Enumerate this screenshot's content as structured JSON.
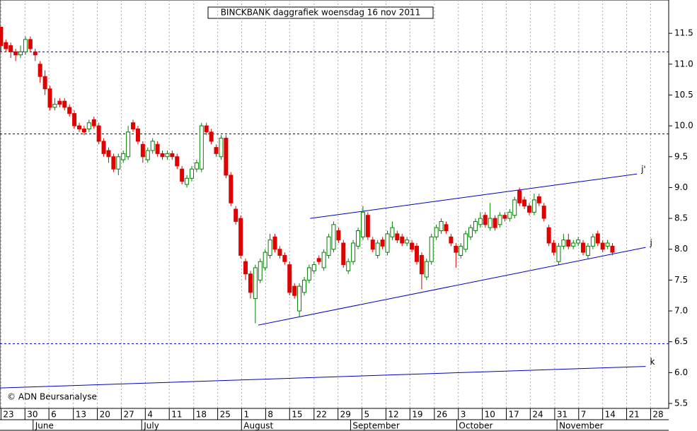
{
  "chart_data": {
    "type": "candlestick",
    "title": "BINCKBANK daggrafiek woensdag 16 nov 2011",
    "footer": "© ADN Beursanalyse",
    "up_color": "#008000",
    "down_color": "#e00000",
    "grid": true,
    "xlim": [
      -0.2,
      136.5
    ],
    "ylim": [
      5.42,
      12.04
    ],
    "yticks": [
      5.5,
      {
        "value": 6,
        "label": "6.0"
      },
      6.5,
      {
        "value": 7,
        "label": "7.0"
      },
      7.5,
      {
        "value": 8,
        "label": "8.0"
      },
      8.5,
      {
        "value": 9,
        "label": "9.0"
      },
      9.5,
      {
        "value": 10,
        "label": "10.0"
      },
      10.5,
      {
        "value": 11,
        "label": "11.0"
      },
      11.5
    ],
    "xticks": [
      {
        "value": 0,
        "label": "23"
      },
      {
        "value": 4.9,
        "label": "30"
      },
      {
        "value": 9.8,
        "label": "6"
      },
      {
        "value": 14.8,
        "label": "13"
      },
      {
        "value": 19.7,
        "label": "20"
      },
      {
        "value": 24.6,
        "label": "27"
      },
      {
        "value": 29.5,
        "label": "4"
      },
      {
        "value": 34.4,
        "label": "11"
      },
      {
        "value": 39.4,
        "label": "18"
      },
      {
        "value": 44.3,
        "label": "25"
      },
      {
        "value": 49.2,
        "label": "1"
      },
      {
        "value": 54.1,
        "label": "8"
      },
      {
        "value": 59,
        "label": "15"
      },
      {
        "value": 64,
        "label": "22"
      },
      {
        "value": 68.9,
        "label": "29"
      },
      {
        "value": 73.8,
        "label": "5"
      },
      {
        "value": 78.7,
        "label": "12"
      },
      {
        "value": 83.6,
        "label": "19"
      },
      {
        "value": 88.6,
        "label": "26"
      },
      {
        "value": 93.5,
        "label": "3"
      },
      {
        "value": 98.4,
        "label": "10"
      },
      {
        "value": 103.3,
        "label": "17"
      },
      {
        "value": 108.2,
        "label": "24"
      },
      {
        "value": 113.2,
        "label": "31"
      },
      {
        "value": 118.1,
        "label": "7"
      },
      {
        "value": 123,
        "label": "14"
      },
      {
        "value": 127.9,
        "label": "21"
      },
      {
        "value": 132.8,
        "label": "28"
      }
    ],
    "months": [
      {
        "value": 7,
        "label": "June"
      },
      {
        "value": 29.2,
        "label": "July"
      },
      {
        "value": 49.6,
        "label": "August"
      },
      {
        "value": 71.9,
        "label": "September"
      },
      {
        "value": 93.6,
        "label": "October"
      },
      {
        "value": 114.1,
        "label": "November"
      }
    ],
    "hlines": [
      11.2,
      9.87,
      6.47
    ],
    "trendlines": [
      {
        "label": "j'",
        "x": [
          63.2,
          130
        ],
        "y": [
          8.5,
          9.22
        ]
      },
      {
        "label": "j",
        "x": [
          52.6,
          131.8
        ],
        "y": [
          6.77,
          8.03
        ]
      },
      {
        "label": "k",
        "x": [
          -0.2,
          131.8
        ],
        "y": [
          5.75,
          6.1
        ]
      }
    ],
    "ohlc": [
      [
        11.6,
        11.6,
        11.2,
        11.3
      ],
      [
        11.35,
        11.4,
        11.2,
        11.25
      ],
      [
        11.3,
        11.35,
        11.1,
        11.2
      ],
      [
        11.2,
        11.25,
        11.05,
        11.15
      ],
      [
        11.15,
        11.3,
        11.1,
        11.2
      ],
      [
        11.2,
        11.45,
        11.15,
        11.4
      ],
      [
        11.4,
        11.45,
        11.2,
        11.25
      ],
      [
        11.2,
        11.25,
        11.05,
        11.15
      ],
      [
        11.0,
        11.05,
        10.7,
        10.8
      ],
      [
        10.8,
        10.9,
        10.5,
        10.6
      ],
      [
        10.6,
        10.65,
        10.25,
        10.3
      ],
      [
        10.3,
        10.45,
        10.25,
        10.35
      ],
      [
        10.4,
        10.45,
        10.3,
        10.35
      ],
      [
        10.4,
        10.45,
        10.25,
        10.3
      ],
      [
        10.3,
        10.35,
        10.15,
        10.2
      ],
      [
        10.2,
        10.25,
        9.95,
        10.0
      ],
      [
        10.0,
        10.05,
        9.9,
        9.95
      ],
      [
        9.95,
        10.0,
        9.85,
        9.9
      ],
      [
        9.95,
        10.1,
        9.9,
        10.05
      ],
      [
        10.1,
        10.15,
        9.95,
        10.0
      ],
      [
        10.0,
        10.05,
        9.7,
        9.75
      ],
      [
        9.75,
        9.8,
        9.5,
        9.55
      ],
      [
        9.6,
        9.65,
        9.4,
        9.5
      ],
      [
        9.5,
        9.55,
        9.25,
        9.3
      ],
      [
        9.3,
        9.55,
        9.2,
        9.5
      ],
      [
        9.45,
        9.6,
        9.4,
        9.55
      ],
      [
        9.5,
        10.0,
        9.45,
        9.9
      ],
      [
        10.05,
        10.1,
        9.9,
        9.95
      ],
      [
        9.95,
        10.0,
        9.7,
        9.75
      ],
      [
        9.7,
        9.75,
        9.4,
        9.5
      ],
      [
        9.45,
        9.65,
        9.4,
        9.6
      ],
      [
        9.6,
        9.8,
        9.55,
        9.75
      ],
      [
        9.7,
        9.75,
        9.5,
        9.55
      ],
      [
        9.55,
        9.6,
        9.45,
        9.5
      ],
      [
        9.5,
        9.6,
        9.45,
        9.55
      ],
      [
        9.55,
        9.6,
        9.45,
        9.5
      ],
      [
        9.5,
        9.55,
        9.3,
        9.35
      ],
      [
        9.3,
        9.35,
        9.05,
        9.1
      ],
      [
        9.05,
        9.2,
        9.0,
        9.15
      ],
      [
        9.15,
        9.35,
        9.1,
        9.3
      ],
      [
        9.3,
        9.45,
        9.25,
        9.4
      ],
      [
        9.3,
        10.05,
        9.25,
        10.0
      ],
      [
        10.0,
        10.05,
        9.85,
        9.9
      ],
      [
        9.9,
        9.95,
        9.7,
        9.75
      ],
      [
        9.65,
        9.7,
        9.5,
        9.55
      ],
      [
        9.5,
        9.85,
        9.45,
        9.8
      ],
      [
        9.8,
        9.85,
        9.15,
        9.2
      ],
      [
        9.2,
        9.25,
        8.7,
        8.75
      ],
      [
        8.65,
        8.7,
        8.4,
        8.45
      ],
      [
        8.5,
        8.55,
        7.85,
        7.9
      ],
      [
        7.8,
        7.85,
        7.5,
        7.6
      ],
      [
        7.6,
        7.65,
        7.2,
        7.3
      ],
      [
        7.2,
        7.75,
        6.8,
        7.7
      ],
      [
        7.5,
        7.85,
        7.45,
        7.8
      ],
      [
        7.7,
        8.0,
        7.65,
        7.95
      ],
      [
        7.9,
        8.25,
        7.85,
        8.15
      ],
      [
        8.2,
        8.25,
        7.95,
        8.0
      ],
      [
        8.0,
        8.05,
        7.85,
        7.9
      ],
      [
        7.9,
        7.95,
        7.75,
        7.8
      ],
      [
        7.75,
        7.8,
        7.25,
        7.3
      ],
      [
        7.4,
        7.45,
        7.2,
        7.25
      ],
      [
        7.0,
        7.45,
        6.9,
        7.4
      ],
      [
        7.3,
        7.55,
        7.25,
        7.5
      ],
      [
        7.5,
        7.75,
        7.45,
        7.7
      ],
      [
        7.65,
        7.8,
        7.6,
        7.75
      ],
      [
        7.85,
        7.9,
        7.75,
        7.8
      ],
      [
        7.7,
        8.0,
        7.65,
        7.95
      ],
      [
        7.9,
        8.25,
        7.85,
        8.2
      ],
      [
        8.0,
        8.45,
        7.95,
        8.4
      ],
      [
        8.3,
        8.35,
        8.1,
        8.15
      ],
      [
        8.1,
        8.15,
        7.7,
        7.75
      ],
      [
        7.65,
        7.85,
        7.6,
        7.8
      ],
      [
        7.8,
        8.15,
        7.75,
        8.1
      ],
      [
        8.05,
        8.35,
        8.0,
        8.3
      ],
      [
        8.2,
        8.7,
        8.15,
        8.6
      ],
      [
        8.55,
        8.6,
        8.15,
        8.2
      ],
      [
        8.15,
        8.2,
        7.95,
        8.0
      ],
      [
        7.9,
        8.15,
        7.85,
        8.1
      ],
      [
        8.15,
        8.2,
        8.0,
        8.05
      ],
      [
        7.95,
        8.3,
        7.9,
        8.25
      ],
      [
        8.2,
        8.45,
        8.15,
        8.35
      ],
      [
        8.25,
        8.3,
        8.1,
        8.15
      ],
      [
        8.2,
        8.25,
        8.05,
        8.1
      ],
      [
        8.1,
        8.2,
        8.05,
        8.15
      ],
      [
        8.1,
        8.15,
        7.95,
        8.0
      ],
      [
        8.05,
        8.1,
        7.75,
        7.8
      ],
      [
        7.9,
        7.95,
        7.35,
        7.6
      ],
      [
        7.55,
        7.85,
        7.5,
        7.8
      ],
      [
        7.8,
        8.25,
        7.75,
        8.2
      ],
      [
        8.2,
        8.4,
        8.15,
        8.35
      ],
      [
        8.3,
        8.5,
        8.25,
        8.45
      ],
      [
        8.4,
        8.45,
        8.25,
        8.3
      ],
      [
        8.2,
        8.25,
        8.05,
        8.1
      ],
      [
        8.05,
        8.1,
        7.7,
        7.95
      ],
      [
        7.9,
        8.1,
        7.85,
        8.05
      ],
      [
        8.0,
        8.3,
        7.95,
        8.25
      ],
      [
        8.2,
        8.4,
        8.15,
        8.35
      ],
      [
        8.3,
        8.5,
        8.25,
        8.45
      ],
      [
        8.4,
        8.6,
        8.35,
        8.5
      ],
      [
        8.55,
        8.6,
        8.35,
        8.4
      ],
      [
        8.35,
        8.75,
        8.3,
        8.5
      ],
      [
        8.5,
        8.55,
        8.3,
        8.35
      ],
      [
        8.4,
        8.6,
        8.35,
        8.55
      ],
      [
        8.55,
        8.6,
        8.45,
        8.5
      ],
      [
        8.5,
        8.65,
        8.45,
        8.6
      ],
      [
        8.55,
        8.85,
        8.5,
        8.8
      ],
      [
        8.95,
        9.0,
        8.7,
        8.75
      ],
      [
        8.8,
        8.85,
        8.65,
        8.7
      ],
      [
        8.7,
        8.75,
        8.55,
        8.6
      ],
      [
        8.6,
        8.9,
        8.55,
        8.8
      ],
      [
        8.85,
        8.9,
        8.7,
        8.75
      ],
      [
        8.7,
        8.75,
        8.45,
        8.5
      ],
      [
        8.35,
        8.4,
        8.05,
        8.1
      ],
      [
        8.1,
        8.15,
        7.9,
        7.95
      ],
      [
        7.8,
        8.1,
        7.75,
        8.05
      ],
      [
        8.05,
        8.25,
        8.0,
        8.15
      ],
      [
        8.15,
        8.25,
        8.0,
        8.05
      ],
      [
        8.05,
        8.15,
        8.0,
        8.1
      ],
      [
        8.1,
        8.2,
        8.05,
        8.15
      ],
      [
        8.1,
        8.15,
        7.9,
        7.95
      ],
      [
        7.9,
        8.1,
        7.85,
        8.05
      ],
      [
        8.05,
        8.25,
        8.0,
        8.2
      ],
      [
        8.25,
        8.3,
        8.05,
        8.1
      ],
      [
        8.1,
        8.15,
        7.95,
        8.0
      ],
      [
        8.05,
        8.15,
        8.0,
        8.1
      ],
      [
        8.05,
        8.1,
        7.9,
        7.95
      ]
    ]
  }
}
